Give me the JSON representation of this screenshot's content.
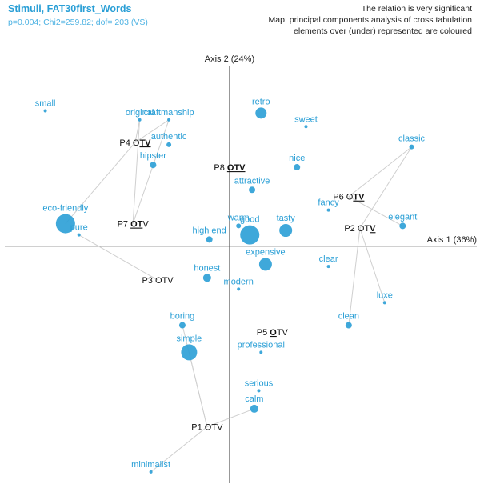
{
  "header": {
    "title": "Stimuli, FAT30first_Words",
    "stats": "p=0.004; Chi2=259.82; dof= 203 (VS)",
    "right_line1": "The relation is very significant",
    "right_line2": "Map: principal components analysis of cross tabulation",
    "right_line3": "elements over (under) represented are coloured"
  },
  "chart_data": {
    "type": "scatter",
    "axis_x_label": "Axis 1 (36%)",
    "axis_y_label": "Axis 2 (24%)",
    "xlim": [
      -1.0,
      1.1
    ],
    "ylim": [
      -1.05,
      0.85
    ],
    "colors": {
      "word": "#2a9fd6",
      "product": "#111111",
      "link": "#cfcfcf"
    },
    "words": [
      {
        "label": "small",
        "x": -0.82,
        "y": 0.6,
        "size": 2
      },
      {
        "label": "original",
        "x": -0.4,
        "y": 0.56,
        "size": 2
      },
      {
        "label": "craftmanship",
        "x": -0.27,
        "y": 0.56,
        "size": 2
      },
      {
        "label": "authentic",
        "x": -0.27,
        "y": 0.45,
        "size": 3
      },
      {
        "label": "hipster",
        "x": -0.34,
        "y": 0.36,
        "size": 4
      },
      {
        "label": "retro",
        "x": 0.14,
        "y": 0.59,
        "size": 7
      },
      {
        "label": "sweet",
        "x": 0.34,
        "y": 0.53,
        "size": 2
      },
      {
        "label": "classic",
        "x": 0.81,
        "y": 0.44,
        "size": 3
      },
      {
        "label": "nice",
        "x": 0.3,
        "y": 0.35,
        "size": 4
      },
      {
        "label": "attractive",
        "x": 0.1,
        "y": 0.25,
        "size": 4
      },
      {
        "label": "fancy",
        "x": 0.44,
        "y": 0.16,
        "size": 2
      },
      {
        "label": "elegant",
        "x": 0.77,
        "y": 0.09,
        "size": 4
      },
      {
        "label": "warm",
        "x": 0.04,
        "y": 0.09,
        "size": 3
      },
      {
        "label": "good",
        "x": 0.09,
        "y": 0.05,
        "size": 12
      },
      {
        "label": "tasty",
        "x": 0.25,
        "y": 0.07,
        "size": 8
      },
      {
        "label": "high end",
        "x": -0.09,
        "y": 0.03,
        "size": 4
      },
      {
        "label": "eco-friendly",
        "x": -0.73,
        "y": 0.1,
        "size": 12
      },
      {
        "label": "pure",
        "x": -0.67,
        "y": 0.05,
        "size": 2
      },
      {
        "label": "expensive",
        "x": 0.16,
        "y": -0.08,
        "size": 8
      },
      {
        "label": "clear",
        "x": 0.44,
        "y": -0.09,
        "size": 2
      },
      {
        "label": "honest",
        "x": -0.1,
        "y": -0.14,
        "size": 5
      },
      {
        "label": "modern",
        "x": 0.04,
        "y": -0.19,
        "size": 2
      },
      {
        "label": "luxe",
        "x": 0.69,
        "y": -0.25,
        "size": 2
      },
      {
        "label": "clean",
        "x": 0.53,
        "y": -0.35,
        "size": 4
      },
      {
        "label": "boring",
        "x": -0.21,
        "y": -0.35,
        "size": 4
      },
      {
        "label": "simple",
        "x": -0.18,
        "y": -0.47,
        "size": 10
      },
      {
        "label": "professional",
        "x": 0.14,
        "y": -0.47,
        "size": 2
      },
      {
        "label": "serious",
        "x": 0.13,
        "y": -0.64,
        "size": 2
      },
      {
        "label": "calm",
        "x": 0.11,
        "y": -0.72,
        "size": 5
      },
      {
        "label": "minimalist",
        "x": -0.35,
        "y": -1.0,
        "size": 2
      }
    ],
    "products": [
      {
        "name": "P4",
        "pre": "O",
        "hl": "TV",
        "post": "",
        "x": -0.42,
        "y": 0.46
      },
      {
        "name": "P8",
        "pre": "",
        "hl": "OTV",
        "post": "",
        "x": 0.0,
        "y": 0.35
      },
      {
        "name": "P6",
        "pre": "O",
        "hl": "TV",
        "post": "",
        "x": 0.53,
        "y": 0.22
      },
      {
        "name": "P7",
        "pre": "",
        "hl": "OT",
        "post": "V",
        "x": -0.43,
        "y": 0.1
      },
      {
        "name": "P2",
        "pre": "OT",
        "hl": "V",
        "post": "",
        "x": 0.58,
        "y": 0.08
      },
      {
        "name": "P3",
        "pre": "O",
        "hl": "",
        "post": "TV",
        "x": -0.32,
        "y": -0.15
      },
      {
        "name": "P5",
        "pre": "",
        "hl": "O",
        "post": "TV",
        "x": 0.19,
        "y": -0.38
      },
      {
        "name": "P1",
        "pre": "OTV",
        "hl": "",
        "post": "",
        "x": -0.1,
        "y": -0.8
      }
    ],
    "links": [
      [
        "P4",
        "original"
      ],
      [
        "P4",
        "craftmanship"
      ],
      [
        "P4",
        "eco-friendly"
      ],
      [
        "P7",
        "original"
      ],
      [
        "P7",
        "craftmanship"
      ],
      [
        "P3",
        "pure"
      ],
      [
        "P6",
        "classic"
      ],
      [
        "P6",
        "elegant"
      ],
      [
        "P2",
        "classic"
      ],
      [
        "P2",
        "luxe"
      ],
      [
        "P2",
        "clean"
      ],
      [
        "P1",
        "boring"
      ],
      [
        "P1",
        "simple"
      ],
      [
        "P1",
        "calm"
      ],
      [
        "P1",
        "minimalist"
      ]
    ]
  }
}
